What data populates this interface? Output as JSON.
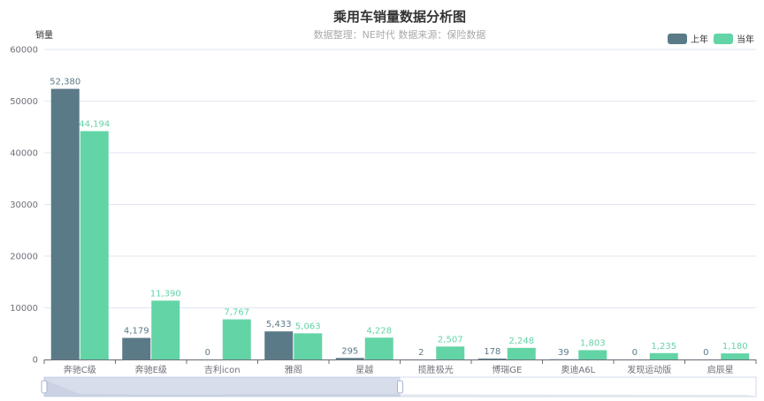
{
  "chart_data": {
    "type": "bar",
    "title": "乘用车销量数据分析图",
    "subtitle": "数据整理：NE时代 数据来源：保险数据",
    "ylabel": "销量",
    "xlabel": "",
    "ylim": [
      0,
      60000
    ],
    "yticks": [
      0,
      10000,
      20000,
      30000,
      40000,
      50000,
      60000
    ],
    "categories": [
      "奔驰C级",
      "奔驰E级",
      "吉利icon",
      "雅阁",
      "星越",
      "揽胜极光",
      "博瑞GE",
      "奥迪A6L",
      "发现运动版",
      "启辰星"
    ],
    "series": [
      {
        "name": "上年",
        "color": "#5b7a88",
        "values": [
          52380,
          4179,
          0,
          5433,
          295,
          2,
          178,
          39,
          0,
          0
        ],
        "labels": [
          "52,380",
          "4,179",
          "0",
          "5,433",
          "295",
          "2",
          "178",
          "39",
          "0",
          "0"
        ]
      },
      {
        "name": "当年",
        "color": "#63d4a6",
        "values": [
          44194,
          11390,
          7767,
          5063,
          4228,
          2507,
          2248,
          1803,
          1235,
          1180
        ],
        "labels": [
          "44,194",
          "11,390",
          "7,767",
          "5,063",
          "4,228",
          "2,507",
          "2,248",
          "1,803",
          "1,235",
          "1,180"
        ]
      }
    ],
    "grid": true,
    "legend_position": "top-right",
    "datazoom": {
      "start": 0,
      "end": 0.5
    }
  }
}
